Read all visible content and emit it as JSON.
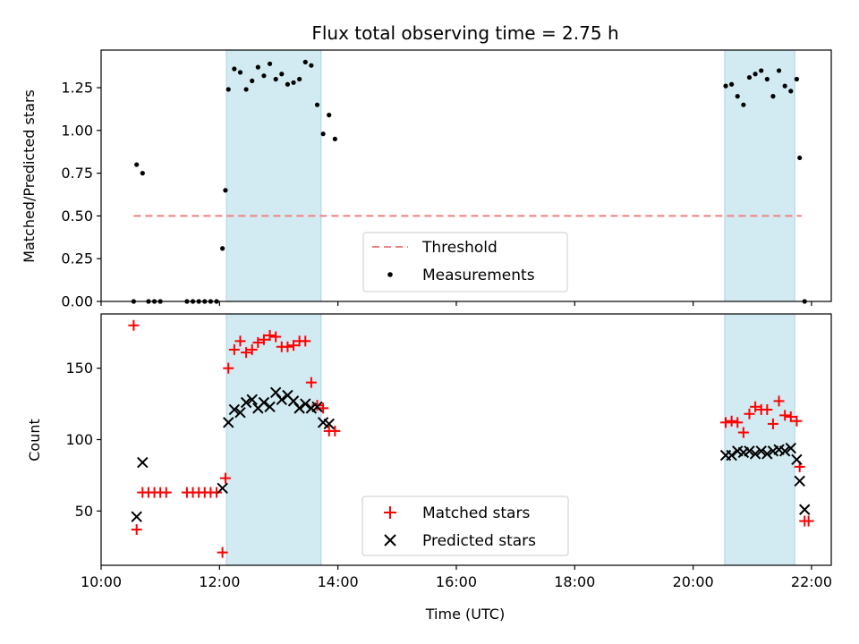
{
  "chart_data": [
    {
      "type": "scatter",
      "title": "Flux total observing time = 2.75 h",
      "xlabel": "",
      "ylabel": "Matched/Predicted stars",
      "xlim": [
        "10:00",
        "22:20"
      ],
      "ylim": [
        0,
        1.47
      ],
      "yticks": [
        0.0,
        0.25,
        0.5,
        0.75,
        1.0,
        1.25
      ],
      "ytick_labels": [
        "0.00",
        "0.25",
        "0.50",
        "0.75",
        "1.00",
        "1.25"
      ],
      "xticks": [
        "10:00",
        "12:00",
        "14:00",
        "16:00",
        "18:00",
        "20:00",
        "22:00"
      ],
      "x_tick_labels_visible": false,
      "grid": false,
      "legend_position": "lower-center",
      "shaded_intervals": [
        [
          "12:07",
          "13:43"
        ],
        [
          "20:32",
          "21:43"
        ]
      ],
      "threshold": {
        "name": "Threshold",
        "y": 0.5,
        "x_range": [
          "10:33",
          "21:50"
        ],
        "color": "#f08080",
        "style": "dashed"
      },
      "series": [
        {
          "name": "Measurements",
          "marker": "dot",
          "color": "#000000",
          "x": [
            "10:33",
            "10:36",
            "10:42",
            "10:48",
            "10:54",
            "11:00",
            "11:27",
            "11:33",
            "11:39",
            "11:45",
            "11:51",
            "11:57",
            "12:03",
            "12:06",
            "12:09",
            "12:15",
            "12:21",
            "12:27",
            "12:33",
            "12:39",
            "12:45",
            "12:51",
            "12:57",
            "13:03",
            "13:09",
            "13:15",
            "13:21",
            "13:27",
            "13:33",
            "13:39",
            "13:45",
            "13:51",
            "13:57",
            "20:33",
            "20:39",
            "20:45",
            "20:51",
            "20:57",
            "21:03",
            "21:09",
            "21:15",
            "21:21",
            "21:27",
            "21:33",
            "21:39",
            "21:45",
            "21:48",
            "21:53"
          ],
          "y": [
            0.0,
            0.8,
            0.75,
            0.0,
            0.0,
            0.0,
            0.0,
            0.0,
            0.0,
            0.0,
            0.0,
            0.0,
            0.31,
            0.65,
            1.24,
            1.36,
            1.34,
            1.24,
            1.29,
            1.37,
            1.32,
            1.39,
            1.3,
            1.33,
            1.27,
            1.28,
            1.3,
            1.4,
            1.38,
            1.15,
            0.98,
            1.09,
            0.95,
            1.26,
            1.27,
            1.2,
            1.15,
            1.31,
            1.33,
            1.35,
            1.3,
            1.2,
            1.35,
            1.26,
            1.23,
            1.3,
            0.84,
            0.0
          ]
        }
      ]
    },
    {
      "type": "scatter",
      "title": "",
      "xlabel": "Time (UTC)",
      "ylabel": "Count",
      "xlim": [
        "10:00",
        "22:20"
      ],
      "ylim": [
        12,
        188
      ],
      "yticks": [
        50,
        100,
        150
      ],
      "ytick_labels": [
        "50",
        "100",
        "150"
      ],
      "xticks": [
        "10:00",
        "12:00",
        "14:00",
        "16:00",
        "18:00",
        "20:00",
        "22:00"
      ],
      "xtick_labels": [
        "10:00",
        "12:00",
        "14:00",
        "16:00",
        "18:00",
        "20:00",
        "22:00"
      ],
      "grid": false,
      "legend_position": "lower-center",
      "shaded_intervals": [
        [
          "12:07",
          "13:43"
        ],
        [
          "20:32",
          "21:43"
        ]
      ],
      "series": [
        {
          "name": "Matched stars",
          "marker": "plus",
          "color": "#ff0000",
          "x": [
            "10:33",
            "10:36",
            "10:42",
            "10:48",
            "10:54",
            "11:00",
            "11:06",
            "11:27",
            "11:33",
            "11:39",
            "11:45",
            "11:51",
            "11:57",
            "12:03",
            "12:06",
            "12:09",
            "12:15",
            "12:21",
            "12:27",
            "12:33",
            "12:39",
            "12:45",
            "12:51",
            "12:57",
            "13:03",
            "13:09",
            "13:15",
            "13:21",
            "13:27",
            "13:33",
            "13:39",
            "13:45",
            "13:51",
            "13:57",
            "20:33",
            "20:39",
            "20:45",
            "20:51",
            "20:57",
            "21:03",
            "21:09",
            "21:15",
            "21:21",
            "21:27",
            "21:33",
            "21:39",
            "21:45",
            "21:48",
            "21:53",
            "21:57"
          ],
          "y": [
            180,
            37,
            63,
            63,
            63,
            63,
            63,
            63,
            63,
            63,
            63,
            63,
            63,
            21,
            73,
            150,
            163,
            169,
            161,
            163,
            168,
            170,
            173,
            172,
            165,
            165,
            166,
            169,
            169,
            140,
            124,
            122,
            106,
            106,
            112,
            113,
            112,
            105,
            118,
            123,
            121,
            121,
            111,
            127,
            117,
            116,
            113,
            81,
            43,
            43
          ]
        },
        {
          "name": "Predicted stars",
          "marker": "x",
          "color": "#000000",
          "x": [
            "10:36",
            "10:42",
            "12:03",
            "12:09",
            "12:15",
            "12:21",
            "12:27",
            "12:33",
            "12:39",
            "12:45",
            "12:51",
            "12:57",
            "13:03",
            "13:09",
            "13:15",
            "13:21",
            "13:27",
            "13:33",
            "13:39",
            "13:45",
            "13:51",
            "20:33",
            "20:39",
            "20:45",
            "20:51",
            "20:57",
            "21:03",
            "21:09",
            "21:15",
            "21:21",
            "21:27",
            "21:33",
            "21:39",
            "21:45",
            "21:48",
            "21:53"
          ],
          "y": [
            46,
            84,
            66,
            112,
            121,
            119,
            126,
            128,
            122,
            126,
            123,
            133,
            128,
            131,
            127,
            122,
            125,
            122,
            123,
            112,
            111,
            89,
            89,
            92,
            91,
            92,
            90,
            92,
            90,
            92,
            93,
            92,
            94,
            86,
            71,
            51
          ]
        }
      ]
    }
  ]
}
